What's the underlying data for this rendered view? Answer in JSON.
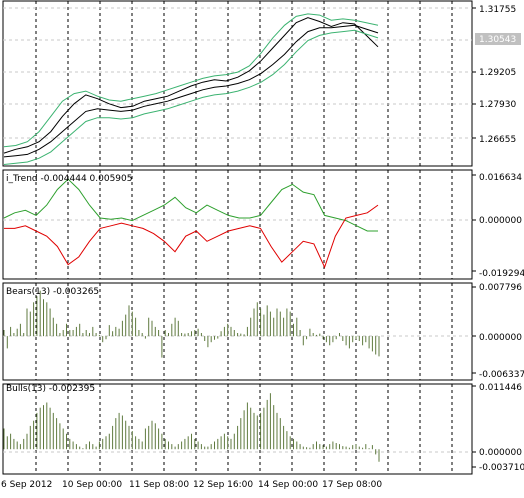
{
  "colors": {
    "background": "#ffffff",
    "frame": "#000000",
    "grid": "#000000",
    "price": "#000000",
    "envelope": "#3cb371",
    "up_line": "#2ea02e",
    "down_line": "#e00000",
    "histogram": "#5f7a3f",
    "current_price_badge": "#c0c0c0"
  },
  "main_panel": {
    "price_levels": [
      "1.31755",
      "1.29205",
      "1.27930",
      "1.26655"
    ],
    "current_price": "1.30543"
  },
  "trend_panel": {
    "caption": "i_Trend -0.004444 0.005905",
    "levels": [
      "0.016634",
      "0.000000",
      "-0.019294"
    ]
  },
  "bears_panel": {
    "caption": "Bears(13) -0.003265",
    "levels": [
      "0.007796",
      "0.000000",
      "-0.006337"
    ]
  },
  "bulls_panel": {
    "caption": "Bulls(13) -0.002395",
    "levels": [
      "0.011446",
      "0.000000",
      "-0.003710"
    ]
  },
  "time_axis": {
    "labels": [
      "6 Sep 2012",
      "10 Sep 00:00",
      "11 Sep 08:00",
      "12 Sep 16:00",
      "14 Sep 00:00",
      "17 Sep 08:00"
    ]
  },
  "chart_data": [
    {
      "type": "line",
      "title": "",
      "ylim": [
        1.26,
        1.322
      ],
      "series": [
        {
          "values": [
            1.2635,
            1.265,
            1.266,
            1.268,
            1.272,
            1.278,
            1.283,
            1.2865,
            1.285,
            1.283,
            1.2815,
            1.282,
            1.284,
            1.285,
            1.286,
            1.288,
            1.29,
            1.2915,
            1.2925,
            1.292,
            1.2935,
            1.296,
            1.3,
            1.305,
            1.31,
            1.315,
            1.317,
            1.3155,
            1.3135,
            1.315,
            1.3145,
            1.31,
            1.3055
          ]
        },
        {
          "values": [
            1.262,
            1.2625,
            1.263,
            1.265,
            1.268,
            1.272,
            1.276,
            1.28,
            1.281,
            1.2805,
            1.28,
            1.2805,
            1.282,
            1.283,
            1.284,
            1.2855,
            1.287,
            1.2885,
            1.2895,
            1.29,
            1.291,
            1.2925,
            1.295,
            1.2985,
            1.3025,
            1.3075,
            1.3115,
            1.313,
            1.313,
            1.3135,
            1.314,
            1.3125,
            1.311
          ]
        },
        {
          "values": [
            1.266,
            1.2665,
            1.268,
            1.272,
            1.278,
            1.284,
            1.287,
            1.288,
            1.286,
            1.2845,
            1.284,
            1.285,
            1.286,
            1.287,
            1.2885,
            1.29,
            1.2915,
            1.293,
            1.294,
            1.2945,
            1.2955,
            1.298,
            1.303,
            1.309,
            1.314,
            1.3175,
            1.3185,
            1.318,
            1.316,
            1.3165,
            1.316,
            1.315,
            1.314
          ]
        },
        {
          "values": [
            1.259,
            1.2595,
            1.26,
            1.2615,
            1.264,
            1.268,
            1.272,
            1.276,
            1.2775,
            1.2775,
            1.277,
            1.2775,
            1.279,
            1.28,
            1.281,
            1.2825,
            1.284,
            1.2855,
            1.2865,
            1.287,
            1.288,
            1.2895,
            1.2915,
            1.2945,
            1.2985,
            1.3035,
            1.308,
            1.31,
            1.311,
            1.3115,
            1.312,
            1.3105,
            1.309
          ]
        }
      ]
    },
    {
      "type": "line",
      "title": "",
      "ylim": [
        -0.021,
        0.018
      ],
      "series": [
        {
          "values": [
            0.001,
            0.003,
            0.004,
            0.002,
            0.006,
            0.012,
            0.016,
            0.012,
            0.006,
            0.001,
            0.0005,
            0.001,
            0.0,
            0.002,
            0.004,
            0.006,
            0.009,
            0.005,
            0.003,
            0.006,
            0.004,
            0.002,
            0.001,
            0.001,
            0.002,
            0.007,
            0.012,
            0.014,
            0.011,
            0.01,
            0.002,
            0.001,
            0.0,
            -0.002,
            -0.004,
            -0.004
          ]
        },
        {
          "values": [
            -0.003,
            -0.003,
            -0.002,
            -0.004,
            -0.006,
            -0.01,
            -0.017,
            -0.014,
            -0.008,
            -0.003,
            -0.002,
            -0.001,
            -0.002,
            -0.003,
            -0.005,
            -0.008,
            -0.012,
            -0.006,
            -0.004,
            -0.008,
            -0.006,
            -0.004,
            -0.003,
            -0.002,
            -0.003,
            -0.01,
            -0.016,
            -0.012,
            -0.008,
            -0.009,
            -0.018,
            -0.006,
            0.001,
            0.002,
            0.003,
            0.006
          ]
        }
      ]
    },
    {
      "type": "bar",
      "title": "",
      "ylim": [
        -0.0065,
        0.008
      ],
      "values": [
        0.001,
        -0.002,
        0.0015,
        0.0005,
        0.0012,
        0.002,
        0.0005,
        0.0045,
        0.004,
        0.0055,
        0.0065,
        0.0074,
        0.006,
        0.0055,
        0.0045,
        0.003,
        0.002,
        0.0005,
        0.001,
        0.002,
        0.001,
        0.001,
        0.0015,
        0.002,
        0.0005,
        0.001,
        0.0005,
        0.0015,
        0.0005,
        0.0002,
        -0.001,
        -0.0005,
        0.0018,
        0.0008,
        0.0015,
        0.0012,
        0.0025,
        0.0035,
        0.005,
        0.004,
        0.003,
        0.001,
        0.0005,
        -0.0004,
        0.003,
        0.0025,
        0.0015,
        0.001,
        -0.0035,
        0.001,
        0.0005,
        0.002,
        0.003,
        0.0025,
        0.0005,
        0.0004,
        0.0005,
        0.0008,
        0.001,
        0.0012,
        0.0005,
        -0.0008,
        -0.0018,
        -0.001,
        -0.0006,
        -0.0004,
        0.0008,
        0.0015,
        0.002,
        0.0015,
        0.001,
        0.0005,
        0.0004,
        0.0003,
        0.0015,
        0.003,
        0.0045,
        0.0055,
        0.0045,
        0.0035,
        0.005,
        0.004,
        0.003,
        0.0045,
        0.004,
        0.003,
        0.0045,
        0.004,
        0.002,
        0.003,
        0.001,
        -0.0015,
        -0.0005,
        0.0012,
        0.0005,
        0.0002,
        0.0004,
        -0.0005,
        -0.001,
        -0.0015,
        -0.001,
        -0.0005,
        0.0005,
        -0.0008,
        -0.0015,
        -0.002,
        -0.001,
        -0.0005,
        -0.0008,
        -0.0015,
        -0.001,
        -0.002,
        -0.0025,
        -0.003,
        -0.0033
      ]
    },
    {
      "type": "bar",
      "title": "",
      "ylim": [
        -0.004,
        0.0118
      ],
      "values": [
        0.004,
        0.0025,
        0.003,
        0.002,
        0.0015,
        0.001,
        0.002,
        0.003,
        0.0045,
        0.0055,
        0.007,
        0.008,
        0.0085,
        0.009,
        0.008,
        0.007,
        0.006,
        0.005,
        0.004,
        0.003,
        0.002,
        0.0015,
        0.001,
        0.0005,
        0.0002,
        0.001,
        0.0015,
        0.001,
        0.0005,
        0.0015,
        0.002,
        0.0025,
        0.003,
        0.0045,
        0.006,
        0.007,
        0.0065,
        0.0055,
        0.0045,
        0.0035,
        0.0025,
        0.002,
        0.0015,
        0.004,
        0.0045,
        0.0055,
        0.005,
        0.004,
        0.003,
        0.002,
        0.0015,
        0.001,
        0.0005,
        0.001,
        0.0015,
        0.002,
        0.0025,
        0.003,
        0.002,
        0.0015,
        0.001,
        0.0005,
        0.0005,
        0.001,
        0.0015,
        0.002,
        0.0025,
        0.003,
        0.0025,
        0.002,
        0.003,
        0.0045,
        0.006,
        0.0075,
        0.009,
        0.008,
        0.007,
        0.0065,
        0.007,
        0.008,
        0.0095,
        0.0108,
        0.0085,
        0.007,
        0.006,
        0.0045,
        0.0035,
        0.0025,
        0.002,
        0.0015,
        0.001,
        0.0005,
        0.0004,
        0.0003,
        0.001,
        0.0015,
        0.001,
        0.0008,
        0.0005,
        0.001,
        0.0015,
        0.0012,
        0.001,
        0.0006,
        0.0005,
        0.0003,
        0.0008,
        0.001,
        0.0005,
        0.0003,
        0.001,
        0.0002,
        0.0008,
        -0.001,
        -0.0024
      ]
    }
  ]
}
